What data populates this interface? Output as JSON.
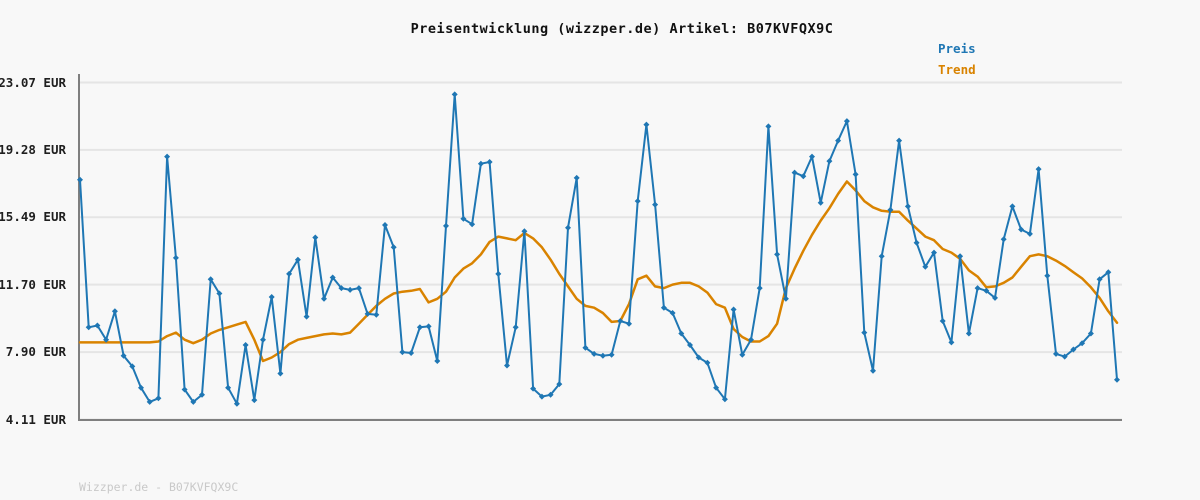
{
  "page": {
    "title": "Preisentwicklung (wizzper.de) Artikel: B07KVFQX9C",
    "footer": "Wizzper.de - B07KVFQX9C"
  },
  "legend": {
    "position": "top-right",
    "items": [
      {
        "label": "Preis",
        "color": "#1f77b4"
      },
      {
        "label": "Trend",
        "color": "#d98300"
      }
    ]
  },
  "colors": {
    "background": "#f8f8f8",
    "grid": "#e5e5e5",
    "axis": "#7f7f7f",
    "title_text": "#111111",
    "tick_text": "#1f1f1f",
    "footer_text": "#c9c9c9",
    "preis_line": "#1f77b4",
    "trend_line": "#d98300"
  },
  "chart_data": {
    "type": "line",
    "title": "Preisentwicklung (wizzper.de) Artikel: B07KVFQX9C",
    "xlabel": "",
    "ylabel": "",
    "currency": "EUR",
    "grid": "horizontal",
    "legend_position": "top-right",
    "x_axis": {
      "tick_labels_visible": false
    },
    "y_axis": {
      "min": 4.11,
      "max": 23.07,
      "ticks": [
        {
          "value": 23.07,
          "label": "23.07 EUR"
        },
        {
          "value": 19.28,
          "label": "19.28 EUR"
        },
        {
          "value": 15.49,
          "label": "15.49 EUR"
        },
        {
          "value": 11.7,
          "label": "11.70 EUR"
        },
        {
          "value": 7.9,
          "label": "7.90 EUR"
        },
        {
          "value": 4.11,
          "label": "4.11 EUR"
        }
      ]
    },
    "series": [
      {
        "name": "Preis",
        "color": "#1f77b4",
        "marker": "diamond",
        "values": [
          17.6,
          9.3,
          9.4,
          8.6,
          10.2,
          7.7,
          7.1,
          5.9,
          5.1,
          5.3,
          18.9,
          13.2,
          5.8,
          5.1,
          5.5,
          12.0,
          11.2,
          5.9,
          5.0,
          8.3,
          5.2,
          8.6,
          11.0,
          6.7,
          12.3,
          13.1,
          9.9,
          14.35,
          10.9,
          12.1,
          11.5,
          11.4,
          11.5,
          10.05,
          10.0,
          15.05,
          13.8,
          7.9,
          7.85,
          9.3,
          9.35,
          7.4,
          15.0,
          22.4,
          15.4,
          15.1,
          18.5,
          18.6,
          12.3,
          7.15,
          9.3,
          14.7,
          5.85,
          5.4,
          5.5,
          6.1,
          14.9,
          17.7,
          8.15,
          7.8,
          7.7,
          7.75,
          9.65,
          9.5,
          16.4,
          20.7,
          16.2,
          10.4,
          10.1,
          8.95,
          8.3,
          7.6,
          7.3,
          5.9,
          5.25,
          10.3,
          7.75,
          8.6,
          11.5,
          20.6,
          13.4,
          10.9,
          18.0,
          17.8,
          18.9,
          16.3,
          18.65,
          19.8,
          20.9,
          17.9,
          9.0,
          6.85,
          13.3,
          15.9,
          19.8,
          16.1,
          14.05,
          12.7,
          13.5,
          9.65,
          8.45,
          13.3,
          8.95,
          11.5,
          11.35,
          10.95,
          14.25,
          16.1,
          14.8,
          14.55,
          18.2,
          12.2,
          7.8,
          7.65,
          8.05,
          8.4,
          8.95,
          12.0,
          12.4,
          6.35
        ]
      },
      {
        "name": "Trend",
        "color": "#d98300",
        "marker": "none",
        "values": [
          8.45,
          8.45,
          8.45,
          8.45,
          8.45,
          8.45,
          8.45,
          8.45,
          8.45,
          8.5,
          8.8,
          9.0,
          8.6,
          8.4,
          8.6,
          8.95,
          9.15,
          9.3,
          9.45,
          9.6,
          8.6,
          7.4,
          7.6,
          7.9,
          8.35,
          8.6,
          8.7,
          8.8,
          8.9,
          8.95,
          8.9,
          9.0,
          9.5,
          10.0,
          10.5,
          10.9,
          11.2,
          11.3,
          11.35,
          11.45,
          10.7,
          10.9,
          11.3,
          12.1,
          12.6,
          12.9,
          13.4,
          14.1,
          14.4,
          14.3,
          14.2,
          14.6,
          14.3,
          13.8,
          13.1,
          12.3,
          11.6,
          10.9,
          10.5,
          10.4,
          10.1,
          9.6,
          9.65,
          10.6,
          12.0,
          12.2,
          11.6,
          11.5,
          11.7,
          11.8,
          11.8,
          11.6,
          11.25,
          10.6,
          10.4,
          9.2,
          8.75,
          8.5,
          8.5,
          8.8,
          9.5,
          11.5,
          12.6,
          13.6,
          14.5,
          15.3,
          16.0,
          16.8,
          17.5,
          17.0,
          16.4,
          16.05,
          15.85,
          15.8,
          15.8,
          15.3,
          14.85,
          14.4,
          14.2,
          13.7,
          13.5,
          13.15,
          12.5,
          12.15,
          11.55,
          11.6,
          11.8,
          12.1,
          12.7,
          13.3,
          13.4,
          13.3,
          13.05,
          12.75,
          12.4,
          12.05,
          11.55,
          10.95,
          10.2,
          9.55
        ]
      }
    ]
  }
}
